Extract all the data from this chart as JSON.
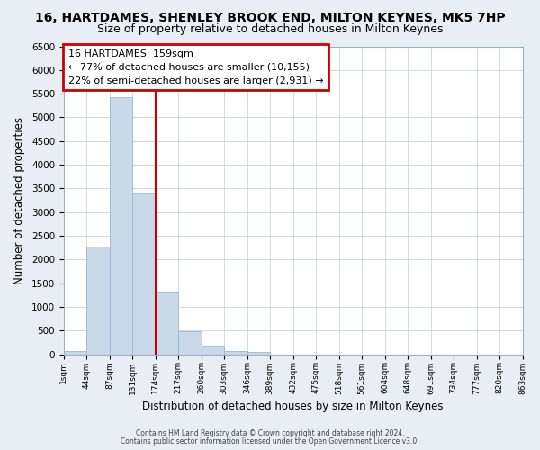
{
  "title": "16, HARTDAMES, SHENLEY BROOK END, MILTON KEYNES, MK5 7HP",
  "subtitle": "Size of property relative to detached houses in Milton Keynes",
  "xlabel": "Distribution of detached houses by size in Milton Keynes",
  "ylabel": "Number of detached properties",
  "bin_labels": [
    "1sqm",
    "44sqm",
    "87sqm",
    "131sqm",
    "174sqm",
    "217sqm",
    "260sqm",
    "303sqm",
    "346sqm",
    "389sqm",
    "432sqm",
    "475sqm",
    "518sqm",
    "561sqm",
    "604sqm",
    "648sqm",
    "691sqm",
    "734sqm",
    "777sqm",
    "820sqm",
    "863sqm"
  ],
  "bar_values": [
    75,
    2270,
    5430,
    3390,
    1320,
    480,
    185,
    75,
    40,
    0,
    0,
    0,
    0,
    0,
    0,
    0,
    0,
    0,
    0,
    0
  ],
  "bar_color": "#c8d9ea",
  "bar_edgecolor": "#9ab8d0",
  "vline_x_index": 4,
  "vline_color": "#cc0000",
  "ylim": [
    0,
    6500
  ],
  "annotation_line1": "16 HARTDAMES: 159sqm",
  "annotation_line2": "← 77% of detached houses are smaller (10,155)",
  "annotation_line3": "22% of semi-detached houses are larger (2,931) →",
  "annotation_box_edgecolor": "#cc0000",
  "footer1": "Contains HM Land Registry data © Crown copyright and database right 2024.",
  "footer2": "Contains public sector information licensed under the Open Government Licence v3.0.",
  "background_color": "#e8eef4",
  "plot_background": "#ffffff",
  "grid_color": "#c8d4de",
  "title_fontsize": 10,
  "subtitle_fontsize": 9
}
